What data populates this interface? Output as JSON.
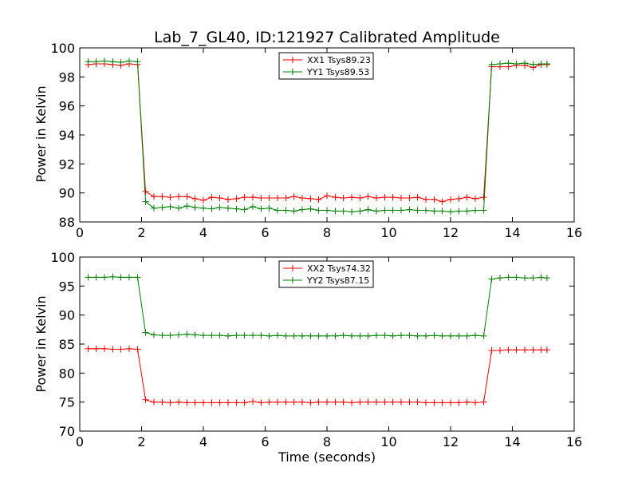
{
  "figure": {
    "title": "Lab_7_GL40, ID:121927 Calibrated Amplitude",
    "xlabel": "Time (seconds)",
    "ylabel": "Power in Kelvin"
  },
  "chart_data": [
    {
      "type": "line",
      "title": "Lab_7_GL40, ID:121927 Calibrated Amplitude",
      "xlabel": "",
      "ylabel": "Power in Kelvin",
      "xlim": [
        0,
        16
      ],
      "ylim": [
        88,
        100
      ],
      "xticks": [
        0,
        2,
        4,
        6,
        8,
        10,
        12,
        14,
        16
      ],
      "yticks": [
        88,
        90,
        92,
        94,
        96,
        98,
        100
      ],
      "grid": false,
      "legend_position": "top-center",
      "x": [
        0.27,
        0.53,
        0.8,
        1.07,
        1.33,
        1.6,
        1.87,
        2.13,
        2.4,
        2.67,
        2.93,
        3.2,
        3.47,
        3.73,
        4.0,
        4.27,
        4.53,
        4.8,
        5.07,
        5.33,
        5.6,
        5.87,
        6.13,
        6.4,
        6.67,
        6.93,
        7.2,
        7.47,
        7.73,
        8.0,
        8.27,
        8.53,
        8.8,
        9.07,
        9.33,
        9.6,
        9.87,
        10.13,
        10.4,
        10.67,
        10.93,
        11.2,
        11.47,
        11.73,
        12.0,
        12.27,
        12.53,
        12.8,
        13.07,
        13.33,
        13.6,
        13.87,
        14.13,
        14.4,
        14.67,
        14.93,
        15.12
      ],
      "series": [
        {
          "name": "XX1 Tsys89.23",
          "color": "#ff0000",
          "values": [
            98.85,
            98.9,
            98.9,
            98.85,
            98.8,
            98.9,
            98.85,
            90.1,
            89.75,
            89.75,
            89.7,
            89.75,
            89.75,
            89.6,
            89.5,
            89.7,
            89.65,
            89.55,
            89.6,
            89.7,
            89.7,
            89.65,
            89.65,
            89.65,
            89.65,
            89.75,
            89.65,
            89.6,
            89.55,
            89.8,
            89.7,
            89.65,
            89.7,
            89.65,
            89.75,
            89.65,
            89.7,
            89.7,
            89.65,
            89.65,
            89.7,
            89.55,
            89.55,
            89.4,
            89.55,
            89.6,
            89.7,
            89.6,
            89.7,
            98.7,
            98.7,
            98.7,
            98.8,
            98.8,
            98.65,
            98.85,
            98.85
          ]
        },
        {
          "name": "YY1 Tsys89.53",
          "color": "#008000",
          "values": [
            99.05,
            99.05,
            99.1,
            99.05,
            99.0,
            99.1,
            99.05,
            89.4,
            88.95,
            89.0,
            89.05,
            88.95,
            89.1,
            89.0,
            88.95,
            88.9,
            89.0,
            88.95,
            88.9,
            88.85,
            89.05,
            88.9,
            88.95,
            88.8,
            88.8,
            88.75,
            88.85,
            88.9,
            88.8,
            88.8,
            88.75,
            88.75,
            88.7,
            88.75,
            88.85,
            88.75,
            88.8,
            88.8,
            88.8,
            88.85,
            88.8,
            88.8,
            88.75,
            88.75,
            88.7,
            88.75,
            88.75,
            88.8,
            88.8,
            98.85,
            98.9,
            98.95,
            98.9,
            98.95,
            98.85,
            98.9,
            98.9
          ]
        }
      ]
    },
    {
      "type": "line",
      "title": "",
      "xlabel": "Time (seconds)",
      "ylabel": "Power in Kelvin",
      "xlim": [
        0,
        16
      ],
      "ylim": [
        70,
        100
      ],
      "xticks": [
        0,
        2,
        4,
        6,
        8,
        10,
        12,
        14,
        16
      ],
      "yticks": [
        70,
        75,
        80,
        85,
        90,
        95,
        100
      ],
      "grid": false,
      "legend_position": "top-center",
      "x": [
        0.27,
        0.53,
        0.8,
        1.07,
        1.33,
        1.6,
        1.87,
        2.13,
        2.4,
        2.67,
        2.93,
        3.2,
        3.47,
        3.73,
        4.0,
        4.27,
        4.53,
        4.8,
        5.07,
        5.33,
        5.6,
        5.87,
        6.13,
        6.4,
        6.67,
        6.93,
        7.2,
        7.47,
        7.73,
        8.0,
        8.27,
        8.53,
        8.8,
        9.07,
        9.33,
        9.6,
        9.87,
        10.13,
        10.4,
        10.67,
        10.93,
        11.2,
        11.47,
        11.73,
        12.0,
        12.27,
        12.53,
        12.8,
        13.07,
        13.33,
        13.6,
        13.87,
        14.13,
        14.4,
        14.67,
        14.93,
        15.12
      ],
      "series": [
        {
          "name": "XX2 Tsys74.32",
          "color": "#ff0000",
          "values": [
            84.2,
            84.2,
            84.2,
            84.1,
            84.1,
            84.2,
            84.1,
            75.4,
            75.0,
            75.0,
            74.9,
            75.0,
            74.9,
            74.9,
            74.9,
            74.9,
            74.9,
            74.9,
            74.9,
            74.9,
            75.1,
            74.9,
            75.0,
            75.0,
            75.0,
            75.0,
            75.0,
            74.9,
            75.0,
            75.0,
            75.0,
            75.0,
            74.9,
            75.0,
            75.0,
            75.0,
            75.0,
            75.0,
            75.0,
            75.0,
            75.0,
            74.9,
            74.9,
            74.9,
            74.9,
            74.9,
            75.0,
            74.9,
            75.0,
            83.9,
            83.9,
            84.0,
            84.0,
            84.0,
            84.0,
            84.0,
            84.0
          ]
        },
        {
          "name": "YY2 Tsys87.15",
          "color": "#008000",
          "values": [
            96.5,
            96.5,
            96.5,
            96.6,
            96.5,
            96.5,
            96.5,
            87.0,
            86.6,
            86.5,
            86.5,
            86.6,
            86.7,
            86.6,
            86.5,
            86.5,
            86.5,
            86.4,
            86.5,
            86.5,
            86.5,
            86.5,
            86.4,
            86.5,
            86.4,
            86.4,
            86.4,
            86.4,
            86.4,
            86.4,
            86.4,
            86.5,
            86.4,
            86.4,
            86.4,
            86.5,
            86.5,
            86.4,
            86.5,
            86.5,
            86.4,
            86.4,
            86.5,
            86.4,
            86.4,
            86.4,
            86.4,
            86.5,
            86.4,
            96.2,
            96.4,
            96.5,
            96.5,
            96.4,
            96.4,
            96.5,
            96.4
          ]
        }
      ]
    }
  ]
}
